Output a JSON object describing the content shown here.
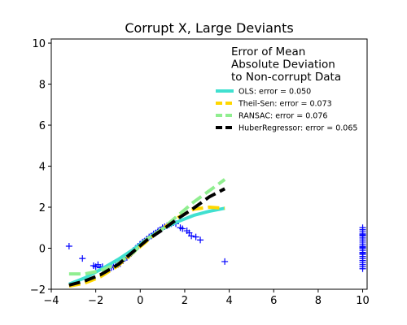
{
  "chart_data": {
    "type": "scatter",
    "title": "Corrupt X, Large Deviants",
    "xlabel": "",
    "ylabel": "",
    "xlim": [
      -4,
      10.2
    ],
    "ylim": [
      -2,
      10.2
    ],
    "xticks": [
      -4,
      -2,
      0,
      2,
      4,
      6,
      8,
      10
    ],
    "yticks": [
      -2,
      0,
      2,
      4,
      6,
      8,
      10
    ],
    "grid": false,
    "legend": {
      "title_lines": [
        "Error of Mean",
        "Absolute Deviation",
        "to Non-corrupt Data"
      ],
      "placement": "top-right"
    },
    "points": {
      "marker": "+",
      "color": "#0000ff",
      "x": [
        -3.2,
        -2.6,
        -2.1,
        -2.0,
        -1.9,
        -1.8,
        -1.7,
        -1.5,
        -1.3,
        -1.2,
        -1.1,
        -1.0,
        -0.9,
        -0.8,
        -0.7,
        -0.6,
        -0.5,
        -0.4,
        -0.3,
        -0.2,
        -0.1,
        0.0,
        0.1,
        0.2,
        0.3,
        0.4,
        0.5,
        0.6,
        0.7,
        0.8,
        0.9,
        1.0,
        1.1,
        1.2,
        1.3,
        1.4,
        1.5,
        1.6,
        1.8,
        1.9,
        2.1,
        2.2,
        2.3,
        2.5,
        2.7,
        3.8,
        10,
        10,
        10,
        10,
        10,
        10,
        10,
        10,
        10,
        10,
        10,
        10,
        10,
        10,
        10,
        10,
        10,
        10,
        10,
        10,
        10,
        10,
        10,
        10
      ],
      "y": [
        0.1,
        -0.5,
        -0.85,
        -0.9,
        -0.8,
        -0.95,
        -0.9,
        -1.0,
        -0.95,
        -0.9,
        -0.85,
        -0.8,
        -0.75,
        -0.6,
        -0.5,
        -0.45,
        -0.35,
        -0.25,
        -0.1,
        0.0,
        0.1,
        0.2,
        0.3,
        0.35,
        0.45,
        0.55,
        0.6,
        0.7,
        0.75,
        0.85,
        0.9,
        1.0,
        1.05,
        1.1,
        1.15,
        1.2,
        1.25,
        1.2,
        1.0,
        0.95,
        0.85,
        0.75,
        0.6,
        0.55,
        0.4,
        -0.65,
        -1.0,
        -0.9,
        -0.8,
        -0.7,
        -0.6,
        -0.5,
        -0.4,
        -0.3,
        -0.2,
        -0.1,
        0.0,
        0.1,
        0.2,
        0.3,
        0.4,
        0.5,
        0.6,
        0.7,
        0.8,
        0.9,
        1.0,
        0.05,
        -0.25,
        0.65
      ]
    },
    "series": [
      {
        "name": "OLS: error = 0.050",
        "color": "#40e0d0",
        "style": "solid",
        "x": [
          -3.2,
          -2.5,
          -1.8,
          -1.0,
          -0.3,
          0.3,
          1.0,
          1.7,
          2.4,
          3.1,
          3.8
        ],
        "y": [
          -1.75,
          -1.45,
          -1.05,
          -0.55,
          -0.05,
          0.45,
          0.95,
          1.3,
          1.6,
          1.8,
          1.95
        ]
      },
      {
        "name": "Theil-Sen: error = 0.073",
        "color": "#ffd700",
        "style": "dashed",
        "x": [
          -3.2,
          -2.5,
          -1.8,
          -1.0,
          -0.3,
          0.3,
          1.0,
          1.7,
          2.4,
          3.1,
          3.8
        ],
        "y": [
          -1.85,
          -1.7,
          -1.4,
          -0.85,
          -0.2,
          0.35,
          0.95,
          1.5,
          1.9,
          2.0,
          1.95
        ]
      },
      {
        "name": "RANSAC: error = 0.076",
        "color": "#90ee90",
        "style": "dashed",
        "x": [
          -3.2,
          -2.5,
          -1.8,
          -1.0,
          -0.3,
          0.3,
          1.0,
          1.7,
          2.4,
          3.1,
          3.8
        ],
        "y": [
          -1.25,
          -1.25,
          -1.1,
          -0.75,
          -0.2,
          0.45,
          0.95,
          1.6,
          2.25,
          2.8,
          3.35
        ]
      },
      {
        "name": "HuberRegressor: error = 0.065",
        "color": "#000000",
        "style": "dashed",
        "x": [
          -3.2,
          -2.5,
          -1.8,
          -1.0,
          -0.3,
          0.3,
          1.0,
          1.7,
          2.4,
          3.1,
          3.8
        ],
        "y": [
          -1.8,
          -1.6,
          -1.3,
          -0.8,
          -0.15,
          0.4,
          0.9,
          1.45,
          1.95,
          2.5,
          2.9
        ]
      }
    ]
  }
}
